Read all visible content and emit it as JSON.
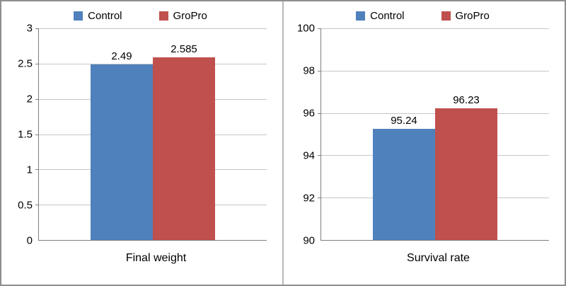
{
  "chart_data": [
    {
      "type": "bar",
      "title": "",
      "categories": [
        "Final weight"
      ],
      "series": [
        {
          "name": "Control",
          "value": 2.49,
          "label": "2.49",
          "color": "#4F81BD"
        },
        {
          "name": "GroPro",
          "value": 2.585,
          "label": "2.585",
          "color": "#C0504D"
        }
      ],
      "legend": [
        "Control",
        "GroPro"
      ],
      "legend_position": "top",
      "grid": true,
      "xlabel": "Final weight",
      "ylabel": "",
      "ylim": [
        0,
        3
      ],
      "yticks": [
        3,
        2.5,
        2,
        1.5,
        1,
        0.5,
        0
      ],
      "ytick_labels": [
        "3",
        "2.5",
        "2",
        "1.5",
        "1",
        "0.5",
        "0"
      ]
    },
    {
      "type": "bar",
      "title": "",
      "categories": [
        "Survival rate"
      ],
      "series": [
        {
          "name": "Control",
          "value": 95.24,
          "label": "95.24",
          "color": "#4F81BD"
        },
        {
          "name": "GroPro",
          "value": 96.23,
          "label": "96.23",
          "color": "#C0504D"
        }
      ],
      "legend": [
        "Control",
        "GroPro"
      ],
      "legend_position": "top",
      "grid": true,
      "xlabel": "Survival rate",
      "ylabel": "",
      "ylim": [
        90,
        100
      ],
      "yticks": [
        100,
        98,
        96,
        94,
        92,
        90
      ],
      "ytick_labels": [
        "100",
        "98",
        "96",
        "94",
        "92",
        "90"
      ]
    }
  ],
  "colors": {
    "control": "#4F81BD",
    "gropro": "#C0504D",
    "gridline": "#C6C6C6",
    "axis": "#7F7F7F"
  }
}
